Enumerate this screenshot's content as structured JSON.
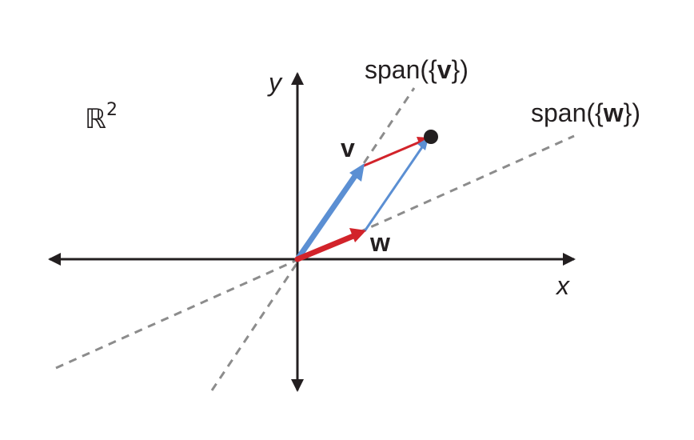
{
  "space": {
    "symbol": "ℝ",
    "exponent": "2"
  },
  "axes": {
    "x_label": "x",
    "y_label": "y"
  },
  "vectors": {
    "v": {
      "label": "v"
    },
    "w": {
      "label": "w"
    }
  },
  "spans": {
    "v": {
      "prefix": "span({",
      "vector": "v",
      "suffix": "})"
    },
    "w": {
      "prefix": "span({",
      "vector": "w",
      "suffix": "})"
    }
  },
  "colors": {
    "axis": "#231f20",
    "span_line": "#8c8c8c",
    "vector_v": "#5b8fd3",
    "vector_w": "#d2232a",
    "point": "#231f20"
  }
}
